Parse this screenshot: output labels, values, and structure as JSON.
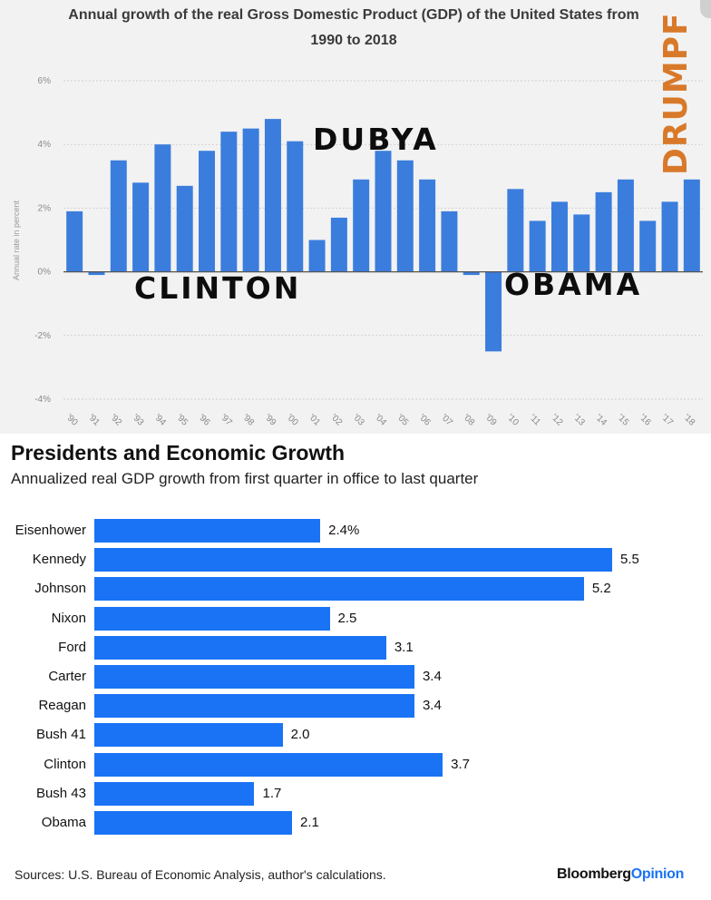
{
  "top_chart": {
    "title_line1": "Annual growth of the real Gross Domestic Product (GDP) of the United States from",
    "title_line2": "1990 to 2018",
    "annotations": {
      "dubya": "DUBYA",
      "clinton": "CLINTON",
      "obama": "OBAMA",
      "drumpf": "DRUMPF"
    }
  },
  "bottom_chart": {
    "title": "Presidents and Economic Growth",
    "subtitle": "Annualized real GDP growth from first quarter in office to last quarter",
    "sources": "Sources: U.S. Bureau of Economic Analysis, author's calculations.",
    "brand_main": "Bloomberg",
    "brand_accent": "Opinion"
  },
  "colors": {
    "top_bar": "#3b7ddd",
    "bottom_bar": "#1a73f5",
    "drumpf": "#d8792a"
  },
  "chart_data": [
    {
      "type": "bar",
      "title": "Annual growth of the real Gross Domestic Product (GDP) of the United States from 1990 to 2018",
      "xlabel": "",
      "ylabel": "Annual rate in percent",
      "ylim": [
        -4,
        6
      ],
      "yticks": [
        6,
        4,
        2,
        0,
        -2,
        -4
      ],
      "ytick_labels": [
        "6%",
        "4%",
        "2%",
        "0%",
        "-2%",
        "-4%"
      ],
      "categories": [
        "'90",
        "'91",
        "'92",
        "'93",
        "'94",
        "'95",
        "'96",
        "'97",
        "'98",
        "'99",
        "'00",
        "'01",
        "'02",
        "'03",
        "'04",
        "'05",
        "'06",
        "'07",
        "'08",
        "'09",
        "'10",
        "'11",
        "'12",
        "'13",
        "'14",
        "'15",
        "'16",
        "'17",
        "'18"
      ],
      "values": [
        1.9,
        -0.1,
        3.5,
        2.8,
        4.0,
        2.7,
        3.8,
        4.4,
        4.5,
        4.8,
        4.1,
        1.0,
        1.7,
        2.9,
        3.8,
        3.5,
        2.9,
        1.9,
        -0.1,
        -2.5,
        2.6,
        1.6,
        2.2,
        1.8,
        2.5,
        2.9,
        1.6,
        2.2,
        2.9
      ],
      "grid": true
    },
    {
      "type": "bar",
      "orientation": "horizontal",
      "title": "Presidents and Economic Growth",
      "subtitle": "Annualized real GDP growth from first quarter in office to last quarter",
      "categories": [
        "Eisenhower",
        "Kennedy",
        "Johnson",
        "Nixon",
        "Ford",
        "Carter",
        "Reagan",
        "Bush 41",
        "Clinton",
        "Bush 43",
        "Obama"
      ],
      "values": [
        2.4,
        5.5,
        5.2,
        2.5,
        3.1,
        3.4,
        3.4,
        2.0,
        3.7,
        1.7,
        2.1
      ],
      "value_labels": [
        "2.4%",
        "5.5",
        "5.2",
        "2.5",
        "3.1",
        "3.4",
        "3.4",
        "2.0",
        "3.7",
        "1.7",
        "2.1"
      ],
      "xlim": [
        0,
        5.5
      ]
    }
  ]
}
